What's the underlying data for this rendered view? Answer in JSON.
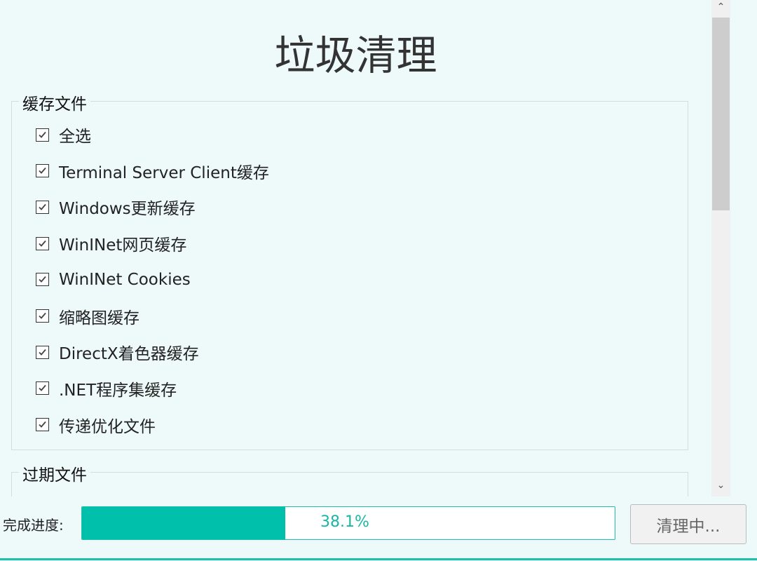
{
  "title": "垃圾清理",
  "groups": [
    {
      "label": "缓存文件",
      "items": [
        {
          "label": "全选",
          "checked": true
        },
        {
          "label": "Terminal Server Client缓存",
          "checked": true
        },
        {
          "label": "Windows更新缓存",
          "checked": true
        },
        {
          "label": "WinINet网页缓存",
          "checked": true
        },
        {
          "label": "WinINet Cookies",
          "checked": true
        },
        {
          "label": "缩略图缓存",
          "checked": true
        },
        {
          "label": "DirectX着色器缓存",
          "checked": true
        },
        {
          "label": ".NET程序集缓存",
          "checked": true
        },
        {
          "label": "传递优化文件",
          "checked": true
        }
      ]
    },
    {
      "label": "过期文件",
      "items": []
    }
  ],
  "progress": {
    "label": "完成进度:",
    "value": 38.1,
    "text": "38.1%"
  },
  "button": {
    "label": "清理中..."
  },
  "colors": {
    "accent": "#00bfab",
    "background": "#eefafa"
  }
}
